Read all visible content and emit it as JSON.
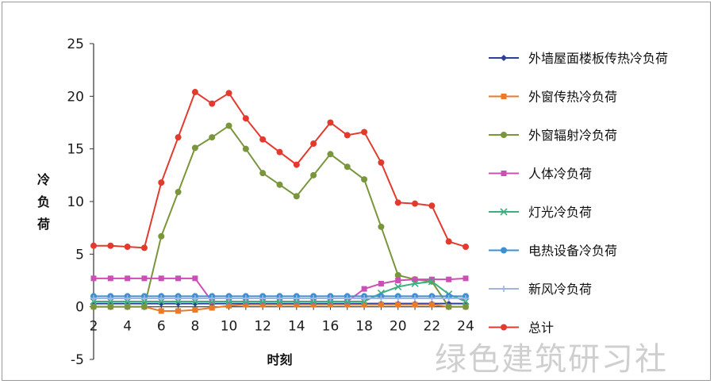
{
  "chart_data": {
    "type": "line",
    "xlabel": "时刻",
    "ylabel": "冷负荷",
    "x": [
      2,
      3,
      4,
      5,
      6,
      7,
      8,
      9,
      10,
      11,
      12,
      13,
      14,
      15,
      16,
      17,
      18,
      19,
      20,
      21,
      22,
      23,
      24
    ],
    "xticks": [
      2,
      4,
      6,
      8,
      10,
      12,
      14,
      16,
      18,
      20,
      22,
      24
    ],
    "yticks": [
      -5,
      0,
      5,
      10,
      15,
      20,
      25
    ],
    "xlim": [
      2,
      24
    ],
    "ylim": [
      -5,
      25
    ],
    "grid": false,
    "legend_position": "right",
    "series": [
      {
        "name": "外墙屋面楼板传热冷负荷",
        "color": "#2e3f9a",
        "marker": "diamond",
        "values": [
          0.3,
          0.3,
          0.3,
          0.3,
          0.3,
          0.3,
          0.3,
          0.3,
          0.3,
          0.3,
          0.3,
          0.3,
          0.3,
          0.3,
          0.3,
          0.3,
          0.3,
          0.3,
          0.3,
          0.3,
          0.3,
          0.3,
          0.3
        ]
      },
      {
        "name": "外窗传热冷负荷",
        "color": "#e87a2a",
        "marker": "square",
        "values": [
          0,
          0,
          0,
          0,
          -0.4,
          -0.4,
          -0.3,
          -0.1,
          0.1,
          0.2,
          0.2,
          0.2,
          0.2,
          0.2,
          0.2,
          0.2,
          0.2,
          0.2,
          0.2,
          0.2,
          0.2,
          0,
          0
        ]
      },
      {
        "name": "外窗辐射冷负荷",
        "color": "#79963d",
        "marker": "circle",
        "values": [
          0,
          0,
          0,
          0,
          6.7,
          10.9,
          15.1,
          16.1,
          17.2,
          15,
          12.7,
          11.6,
          10.5,
          12.5,
          14.5,
          13.3,
          12.1,
          7.6,
          3,
          2.6,
          2.4,
          0,
          0
        ]
      },
      {
        "name": "人体冷负荷",
        "color": "#cc4fb3",
        "marker": "square",
        "values": [
          2.7,
          2.7,
          2.7,
          2.7,
          2.7,
          2.7,
          2.7,
          0.5,
          0.5,
          0.5,
          0.5,
          0.5,
          0.5,
          0.5,
          0.5,
          0.5,
          1.7,
          2.2,
          2.5,
          2.6,
          2.6,
          2.6,
          2.7
        ]
      },
      {
        "name": "灯光冷负荷",
        "color": "#3fae7f",
        "marker": "x",
        "values": [
          0.5,
          0.5,
          0.5,
          0.5,
          0.5,
          0.5,
          0.5,
          0.5,
          0.5,
          0.5,
          0.5,
          0.5,
          0.5,
          0.5,
          0.5,
          0.5,
          0.5,
          1.3,
          1.9,
          2.2,
          2.4,
          1.2,
          0.5
        ]
      },
      {
        "name": "电热设备冷负荷",
        "color": "#3d8fd1",
        "marker": "circle",
        "values": [
          1,
          1,
          1,
          1,
          1,
          1,
          1,
          1,
          1,
          1,
          1,
          1,
          1,
          1,
          1,
          1,
          1,
          1,
          1,
          1,
          1,
          1,
          1
        ]
      },
      {
        "name": "新风冷负荷",
        "color": "#9fb4e0",
        "marker": "plus",
        "values": [
          0.8,
          0.8,
          0.8,
          0.8,
          0.8,
          0.8,
          0.8,
          0.8,
          0.8,
          0.8,
          0.8,
          0.8,
          0.8,
          0.8,
          0.8,
          0.8,
          0.8,
          0.8,
          0.8,
          0.8,
          0.8,
          0.8,
          0.8
        ]
      },
      {
        "name": "总计",
        "color": "#e23b2e",
        "marker": "circle",
        "values": [
          5.8,
          5.8,
          5.7,
          5.6,
          11.8,
          16.1,
          20.4,
          19.3,
          20.3,
          17.9,
          15.9,
          14.7,
          13.5,
          15.5,
          17.5,
          16.3,
          16.6,
          13.7,
          9.9,
          9.8,
          9.6,
          6.2,
          5.7
        ]
      }
    ]
  },
  "watermark": "绿色建筑研习社"
}
